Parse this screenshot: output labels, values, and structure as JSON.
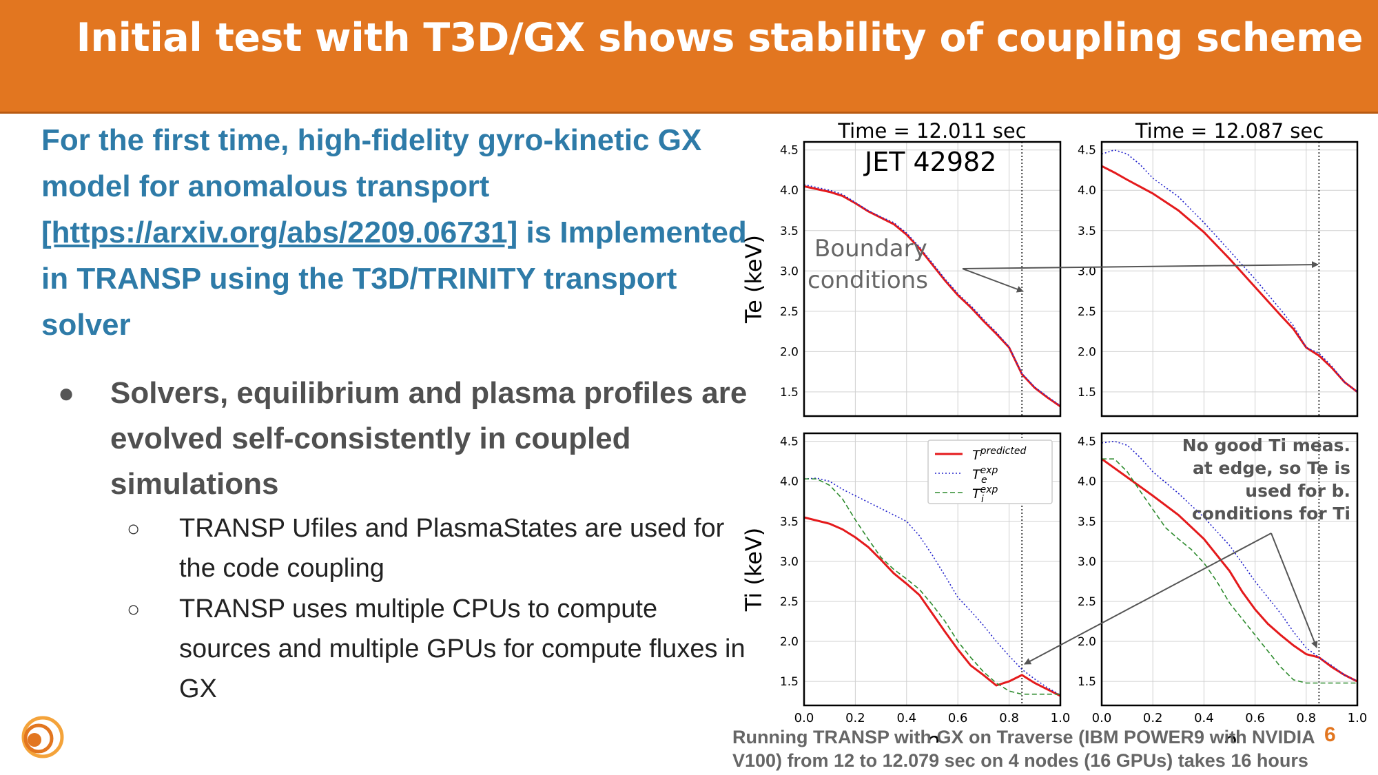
{
  "header": {
    "title": "Initial test with T3D/GX shows stability of coupling scheme"
  },
  "intro": {
    "text1": "For the first time, high-fidelity gyro-kinetic GX model for anomalous transport ",
    "link": "[https://arxiv.org/abs/2209.06731]",
    "text2": " is Implemented in TRANSP using the T3D/TRINITY transport solver"
  },
  "bullets": {
    "main": "Solvers, equilibrium and plasma profiles are evolved self-consistently in coupled simulations",
    "sub1": "TRANSP Ufiles and PlasmaStates are used for the code coupling",
    "sub2": "TRANSP uses multiple CPUs to compute sources and multiple GPUs for compute fluxes in GX"
  },
  "footer": {
    "note": "Running TRANSP with GX on Traverse (IBM POWER9 with NVIDIA V100) from 12 to 12.079 sec on 4 nodes (16 GPUs) takes 16 hours",
    "page_number": "6"
  },
  "chart_data": [
    {
      "type": "line",
      "title": "Time = 12.011 sec",
      "annotation": "JET 42982",
      "xlabel": "",
      "ylabel": "Te (keV)",
      "xlim": [
        0.0,
        1.0
      ],
      "ylim": [
        1.2,
        4.6
      ],
      "boundary_rho": 0.85,
      "series": [
        {
          "name": "T predicted",
          "color": "#e41a1c",
          "style": "solid",
          "x": [
            0.0,
            0.1,
            0.15,
            0.2,
            0.25,
            0.3,
            0.35,
            0.4,
            0.45,
            0.5,
            0.55,
            0.6,
            0.65,
            0.7,
            0.75,
            0.8,
            0.85,
            0.9,
            0.95,
            1.0
          ],
          "y": [
            4.05,
            3.98,
            3.93,
            3.84,
            3.74,
            3.66,
            3.58,
            3.45,
            3.28,
            3.08,
            2.88,
            2.7,
            2.55,
            2.38,
            2.22,
            2.05,
            1.72,
            1.55,
            1.43,
            1.32
          ]
        },
        {
          "name": "Te exp",
          "color": "#2222cc",
          "style": "dotted",
          "x": [
            0.0,
            0.1,
            0.15,
            0.2,
            0.25,
            0.3,
            0.35,
            0.4,
            0.45,
            0.5,
            0.55,
            0.6,
            0.65,
            0.7,
            0.75,
            0.8,
            0.85,
            0.9,
            0.95,
            1.0
          ],
          "y": [
            4.07,
            4.0,
            3.95,
            3.85,
            3.75,
            3.67,
            3.6,
            3.47,
            3.3,
            3.1,
            2.9,
            2.72,
            2.57,
            2.4,
            2.24,
            2.06,
            1.73,
            1.56,
            1.44,
            1.33
          ]
        }
      ]
    },
    {
      "type": "line",
      "title": "Time = 12.087 sec",
      "xlabel": "",
      "ylabel": "",
      "xlim": [
        0.0,
        1.0
      ],
      "ylim": [
        1.2,
        4.6
      ],
      "boundary_rho": 0.85,
      "series": [
        {
          "name": "T predicted",
          "color": "#e41a1c",
          "style": "solid",
          "x": [
            0.0,
            0.05,
            0.1,
            0.2,
            0.3,
            0.4,
            0.5,
            0.6,
            0.7,
            0.75,
            0.8,
            0.85,
            0.9,
            0.95,
            1.0
          ],
          "y": [
            4.3,
            4.22,
            4.13,
            3.96,
            3.75,
            3.48,
            3.15,
            2.8,
            2.45,
            2.28,
            2.05,
            1.95,
            1.8,
            1.62,
            1.5
          ]
        },
        {
          "name": "Te exp",
          "color": "#2222cc",
          "style": "dotted",
          "x": [
            0.0,
            0.05,
            0.1,
            0.15,
            0.2,
            0.3,
            0.4,
            0.5,
            0.6,
            0.7,
            0.75,
            0.8,
            0.85,
            0.9,
            0.95,
            1.0
          ],
          "y": [
            4.45,
            4.5,
            4.45,
            4.32,
            4.15,
            3.92,
            3.6,
            3.25,
            2.9,
            2.52,
            2.32,
            2.05,
            1.98,
            1.82,
            1.62,
            1.5
          ]
        }
      ]
    },
    {
      "type": "line",
      "title": "",
      "xlabel": "ρ",
      "ylabel": "Ti (keV)",
      "xlim": [
        0.0,
        1.0
      ],
      "ylim": [
        1.2,
        4.6
      ],
      "boundary_rho": 0.85,
      "xticks": [
        "0.0",
        "0.2",
        "0.4",
        "0.6",
        "0.8",
        "1.0"
      ],
      "legend": {
        "position": "top-right",
        "entries": [
          {
            "label": "T",
            "sup": "predicted",
            "sub": ""
          },
          {
            "label": "T",
            "sup": "exp",
            "sub": "e"
          },
          {
            "label": "T",
            "sup": "exp",
            "sub": "i"
          }
        ]
      },
      "series": [
        {
          "name": "T predicted",
          "color": "#e41a1c",
          "style": "solid",
          "x": [
            0.0,
            0.1,
            0.15,
            0.2,
            0.25,
            0.3,
            0.35,
            0.4,
            0.45,
            0.5,
            0.55,
            0.6,
            0.65,
            0.7,
            0.75,
            0.8,
            0.85,
            0.9,
            0.95,
            1.0
          ],
          "y": [
            3.55,
            3.47,
            3.4,
            3.3,
            3.18,
            3.02,
            2.85,
            2.72,
            2.58,
            2.35,
            2.12,
            1.9,
            1.7,
            1.58,
            1.45,
            1.5,
            1.58,
            1.48,
            1.4,
            1.32
          ]
        },
        {
          "name": "Te exp",
          "color": "#2222cc",
          "style": "dotted",
          "x": [
            0.0,
            0.05,
            0.1,
            0.15,
            0.2,
            0.25,
            0.3,
            0.35,
            0.4,
            0.45,
            0.5,
            0.55,
            0.6,
            0.65,
            0.7,
            0.75,
            0.8,
            0.85,
            0.9,
            0.95,
            1.0
          ],
          "y": [
            4.03,
            4.04,
            4.0,
            3.9,
            3.82,
            3.74,
            3.66,
            3.58,
            3.5,
            3.32,
            3.08,
            2.82,
            2.55,
            2.38,
            2.2,
            2.0,
            1.82,
            1.65,
            1.53,
            1.42,
            1.33
          ]
        },
        {
          "name": "Ti exp",
          "color": "#2e8b2e",
          "style": "dashed",
          "x": [
            0.0,
            0.05,
            0.1,
            0.15,
            0.2,
            0.25,
            0.3,
            0.35,
            0.4,
            0.45,
            0.5,
            0.55,
            0.6,
            0.65,
            0.7,
            0.75,
            0.8,
            0.85,
            0.9,
            0.95,
            1.0
          ],
          "y": [
            4.03,
            4.03,
            3.95,
            3.78,
            3.52,
            3.28,
            3.05,
            2.9,
            2.78,
            2.65,
            2.46,
            2.25,
            2.0,
            1.8,
            1.62,
            1.48,
            1.38,
            1.34,
            1.34,
            1.34,
            1.34
          ]
        }
      ]
    },
    {
      "type": "line",
      "title": "",
      "xlabel": "ρ",
      "ylabel": "",
      "xlim": [
        0.0,
        1.0
      ],
      "ylim": [
        1.2,
        4.6
      ],
      "boundary_rho": 0.85,
      "xticks": [
        "0.0",
        "0.2",
        "0.4",
        "0.6",
        "0.8",
        "1.0"
      ],
      "annotation_lines": [
        "No good Ti meas.",
        "at edge, so Te is",
        "used for b.",
        "conditions for Ti"
      ],
      "series": [
        {
          "name": "T predicted",
          "color": "#e41a1c",
          "style": "solid",
          "x": [
            0.0,
            0.1,
            0.2,
            0.3,
            0.4,
            0.5,
            0.55,
            0.6,
            0.65,
            0.7,
            0.75,
            0.8,
            0.85,
            0.9,
            0.95,
            1.0
          ],
          "y": [
            4.28,
            4.05,
            3.82,
            3.58,
            3.28,
            2.88,
            2.62,
            2.4,
            2.22,
            2.08,
            1.95,
            1.84,
            1.8,
            1.68,
            1.58,
            1.5
          ]
        },
        {
          "name": "Te exp",
          "color": "#2222cc",
          "style": "dotted",
          "x": [
            0.0,
            0.05,
            0.1,
            0.15,
            0.2,
            0.3,
            0.4,
            0.5,
            0.6,
            0.65,
            0.7,
            0.75,
            0.8,
            0.85,
            0.9,
            0.95,
            1.0
          ],
          "y": [
            4.48,
            4.5,
            4.45,
            4.3,
            4.12,
            3.85,
            3.55,
            3.2,
            2.75,
            2.55,
            2.35,
            2.12,
            1.92,
            1.8,
            1.7,
            1.58,
            1.5
          ]
        },
        {
          "name": "Ti exp",
          "color": "#2e8b2e",
          "style": "dashed",
          "x": [
            0.0,
            0.05,
            0.1,
            0.15,
            0.2,
            0.25,
            0.3,
            0.35,
            0.4,
            0.45,
            0.5,
            0.55,
            0.6,
            0.65,
            0.7,
            0.75,
            0.8,
            0.85,
            0.9,
            0.95,
            1.0
          ],
          "y": [
            4.28,
            4.28,
            4.12,
            3.88,
            3.65,
            3.42,
            3.28,
            3.15,
            2.98,
            2.75,
            2.48,
            2.28,
            2.08,
            1.88,
            1.68,
            1.52,
            1.48,
            1.48,
            1.48,
            1.48,
            1.48
          ]
        }
      ]
    }
  ],
  "figure_annotations": {
    "boundary_label_line1": "Boundary",
    "boundary_label_line2": "conditions",
    "yticks": [
      "1.5",
      "2.0",
      "2.5",
      "3.0",
      "3.5",
      "4.0",
      "4.5"
    ]
  }
}
